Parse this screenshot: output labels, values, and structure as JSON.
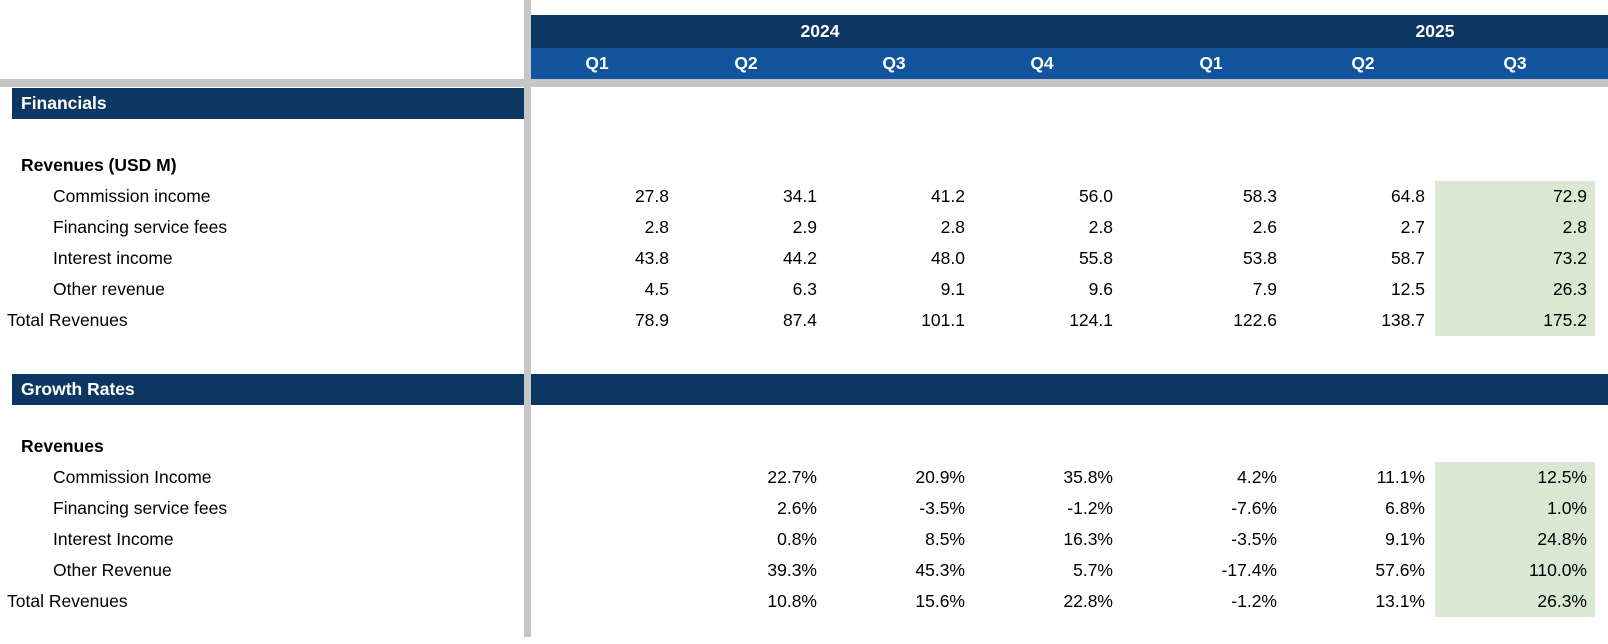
{
  "colors": {
    "navy": "#0d3763",
    "blue": "#11549d",
    "green": "#d9e8d3",
    "divider_gray": "#c6c6c6",
    "text": "#000000",
    "header_text": "#ffffff"
  },
  "header": {
    "years": [
      {
        "label": "2024",
        "quarter_count": 4
      },
      {
        "label": "2025",
        "quarter_count": 3
      }
    ],
    "quarters": [
      "Q1",
      "Q2",
      "Q3",
      "Q4",
      "Q1",
      "Q2",
      "Q3"
    ]
  },
  "highlight": {
    "column": "Q3 2025",
    "color": "#d9e8d3"
  },
  "financials": {
    "section_title": "Financials",
    "group_label": "Revenues (USD M)",
    "rows": [
      {
        "label": "Commission income",
        "values": [
          "27.8",
          "34.1",
          "41.2",
          "56.0",
          "58.3",
          "64.8",
          "72.9"
        ]
      },
      {
        "label": "Financing service fees",
        "values": [
          "2.8",
          "2.9",
          "2.8",
          "2.8",
          "2.6",
          "2.7",
          "2.8"
        ]
      },
      {
        "label": "Interest income",
        "values": [
          "43.8",
          "44.2",
          "48.0",
          "55.8",
          "53.8",
          "58.7",
          "73.2"
        ]
      },
      {
        "label": "Other revenue",
        "values": [
          "4.5",
          "6.3",
          "9.1",
          "9.6",
          "7.9",
          "12.5",
          "26.3"
        ]
      }
    ],
    "total_row": {
      "label": "Total Revenues",
      "values": [
        "78.9",
        "87.4",
        "101.1",
        "124.1",
        "122.6",
        "138.7",
        "175.2"
      ]
    }
  },
  "growth": {
    "section_title": "Growth Rates",
    "group_label": "Revenues",
    "rows": [
      {
        "label": "Commission Income",
        "values": [
          "",
          "22.7%",
          "20.9%",
          "35.8%",
          "4.2%",
          "11.1%",
          "12.5%"
        ]
      },
      {
        "label": "Financing service fees",
        "values": [
          "",
          "2.6%",
          "-3.5%",
          "-1.2%",
          "-7.6%",
          "6.8%",
          "1.0%"
        ]
      },
      {
        "label": "Interest Income",
        "values": [
          "",
          "0.8%",
          "8.5%",
          "16.3%",
          "-3.5%",
          "9.1%",
          "24.8%"
        ]
      },
      {
        "label": "Other Revenue",
        "values": [
          "",
          "39.3%",
          "45.3%",
          "5.7%",
          "-17.4%",
          "57.6%",
          "110.0%"
        ]
      }
    ],
    "total_row": {
      "label": "Total Revenues",
      "values": [
        "",
        "10.8%",
        "15.6%",
        "22.8%",
        "-1.2%",
        "13.1%",
        "26.3%"
      ]
    }
  }
}
